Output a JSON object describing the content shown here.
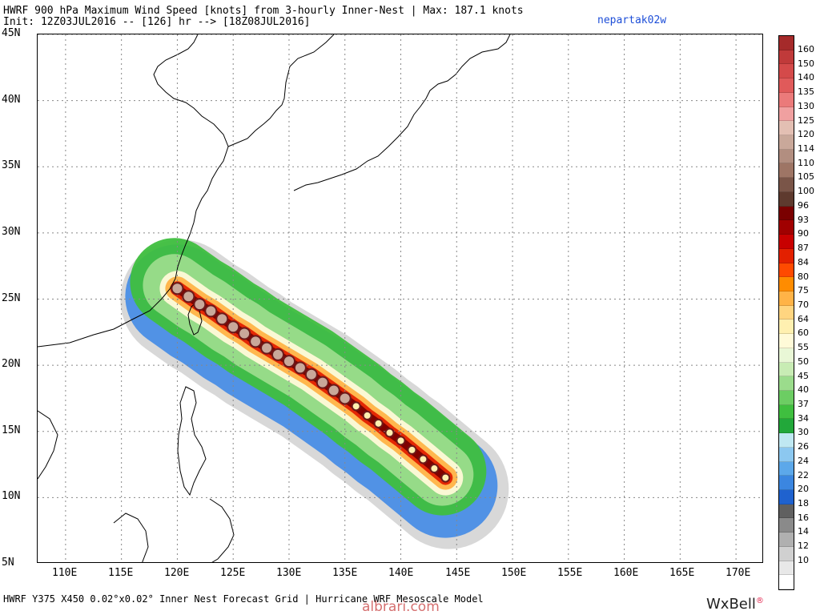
{
  "header": {
    "title": "HWRF 900 hPa Maximum Wind Speed [knots] from 3-hourly Inner-Nest | Max: 187.1 knots",
    "init_line": "Init: 12Z03JUL2016 -- [126] hr --> [18Z08JUL2016]",
    "storm_id": "nepartak02w"
  },
  "footer": {
    "grid_info": "HWRF Y375 X450 0.02°x0.02° Inner Nest Forecast Grid | Hurricane WRF Mesoscale Model",
    "watermark": "albrari.com",
    "brand_main": "WxBell",
    "brand_mark": "®"
  },
  "chart_data": {
    "type": "heatmap",
    "title": "HWRF 900 hPa Maximum Wind Speed [knots] from 3-hourly Inner-Nest",
    "max_value": "187.1 knots",
    "xlim": [
      107.5,
      172.5
    ],
    "ylim": [
      5,
      45
    ],
    "x_ticks": [
      "110E",
      "115E",
      "120E",
      "125E",
      "130E",
      "135E",
      "140E",
      "145E",
      "150E",
      "155E",
      "160E",
      "165E",
      "170E"
    ],
    "x_tick_values": [
      110,
      115,
      120,
      125,
      130,
      135,
      140,
      145,
      150,
      155,
      160,
      165,
      170
    ],
    "y_ticks": [
      "45N",
      "40N",
      "35N",
      "30N",
      "25N",
      "20N",
      "15N",
      "10N",
      "5N"
    ],
    "y_tick_values": [
      45,
      40,
      35,
      30,
      25,
      20,
      15,
      10,
      5
    ],
    "grid": true,
    "colorbar_labels": [
      "160",
      "150",
      "140",
      "135",
      "130",
      "125",
      "120",
      "114",
      "110",
      "105",
      "100",
      "96",
      "93",
      "90",
      "87",
      "84",
      "80",
      "75",
      "70",
      "64",
      "60",
      "55",
      "50",
      "45",
      "40",
      "37",
      "34",
      "30",
      "26",
      "24",
      "22",
      "20",
      "18",
      "16",
      "14",
      "12",
      "10"
    ],
    "colorbar_colors": [
      "#a52a2a",
      "#c03a3a",
      "#d44a4a",
      "#e05a5a",
      "#eb7a7a",
      "#f0a0a0",
      "#e3bfb3",
      "#c9a89a",
      "#b28e80",
      "#9e7565",
      "#7a5548",
      "#5e3a2e",
      "#7a0000",
      "#a00000",
      "#c80000",
      "#e32000",
      "#ff4a00",
      "#ff8c00",
      "#ffb347",
      "#ffd580",
      "#fff0b0",
      "#fffad8",
      "#e9f7d6",
      "#c8ecb4",
      "#9bdc8c",
      "#6ccd63",
      "#3fbf3f",
      "#22a83a",
      "#bfe8f2",
      "#8cc8f0",
      "#5ca8ea",
      "#3b86e0",
      "#1f62cf",
      "#606060",
      "#8a8a8a",
      "#b0b0b0",
      "#d0d0d0",
      "#e8e8e8",
      "#ffffff"
    ],
    "track": {
      "lon": [
        120.0,
        121.0,
        122.0,
        123.0,
        124.0,
        125.0,
        126.0,
        127.0,
        128.0,
        129.0,
        130.0,
        131.0,
        132.0,
        133.0,
        134.0,
        135.0,
        136.0,
        137.0,
        138.0,
        139.0,
        140.0,
        141.0,
        142.0,
        143.0,
        144.0
      ],
      "lat": [
        25.8,
        25.2,
        24.6,
        24.1,
        23.5,
        22.9,
        22.4,
        21.8,
        21.3,
        20.8,
        20.3,
        19.8,
        19.3,
        18.7,
        18.1,
        17.5,
        16.9,
        16.2,
        15.6,
        14.9,
        14.3,
        13.6,
        12.9,
        12.2,
        11.5
      ]
    }
  }
}
